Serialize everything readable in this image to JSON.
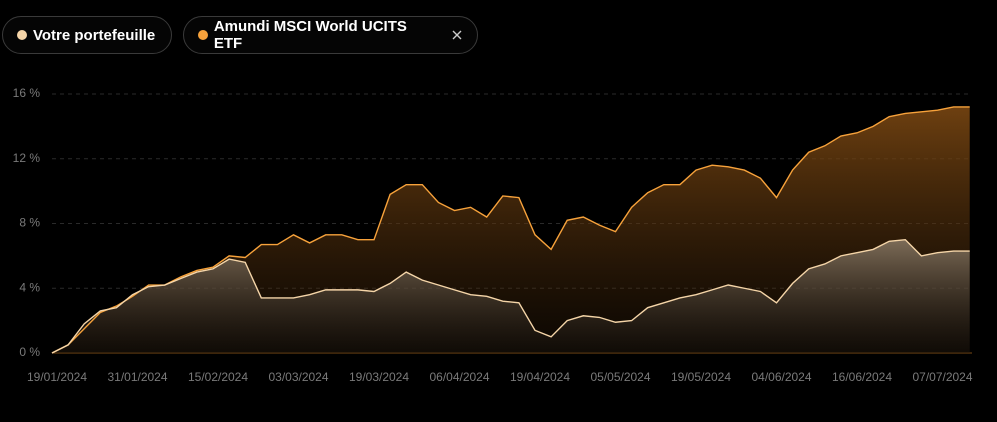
{
  "chart_data": {
    "type": "line",
    "categories": [
      "19/01/2024",
      null,
      null,
      null,
      null,
      "31/01/2024",
      null,
      null,
      null,
      null,
      "15/02/2024",
      null,
      null,
      null,
      null,
      "03/03/2024",
      null,
      null,
      null,
      null,
      "19/03/2024",
      null,
      null,
      null,
      null,
      "06/04/2024",
      null,
      null,
      null,
      null,
      "19/04/2024",
      null,
      null,
      null,
      null,
      "05/05/2024",
      null,
      null,
      null,
      null,
      "19/05/2024",
      null,
      null,
      null,
      null,
      "04/06/2024",
      null,
      null,
      null,
      null,
      "16/06/2024",
      null,
      null,
      null,
      null,
      "07/07/2024",
      null,
      null
    ],
    "series": [
      {
        "name": "Votre portefeuille",
        "color": "#f5d5a8",
        "values": [
          0,
          0.5,
          1.8,
          2.6,
          2.8,
          3.6,
          4.1,
          4.2,
          4.6,
          5.0,
          5.2,
          5.8,
          5.6,
          3.4,
          3.4,
          3.4,
          3.6,
          3.9,
          3.9,
          3.9,
          3.8,
          4.3,
          5.0,
          4.5,
          4.2,
          3.9,
          3.6,
          3.5,
          3.2,
          3.1,
          1.4,
          1.0,
          2.0,
          2.3,
          2.2,
          1.9,
          2.0,
          2.8,
          3.1,
          3.4,
          3.6,
          3.9,
          4.2,
          4.0,
          3.8,
          3.1,
          4.3,
          5.2,
          5.5,
          6.0,
          6.2,
          6.4,
          6.9,
          7.0,
          6.0,
          6.2,
          6.3,
          6.3
        ]
      },
      {
        "name": "Amundi MSCI World UCITS ETF",
        "color": "#f7a23b",
        "values": [
          0,
          0.5,
          1.5,
          2.5,
          2.9,
          3.5,
          4.2,
          4.2,
          4.7,
          5.1,
          5.3,
          6.0,
          5.9,
          6.7,
          6.7,
          7.3,
          6.8,
          7.3,
          7.3,
          7.0,
          7.0,
          9.8,
          10.4,
          10.4,
          9.3,
          8.8,
          9.0,
          8.4,
          9.7,
          9.6,
          7.3,
          6.4,
          8.2,
          8.4,
          7.9,
          7.5,
          9.0,
          9.9,
          10.4,
          10.4,
          11.3,
          11.6,
          11.5,
          11.3,
          10.8,
          9.6,
          11.3,
          12.4,
          12.8,
          13.4,
          13.6,
          14.0,
          14.6,
          14.8,
          14.9,
          15.0,
          15.2,
          15.2
        ]
      }
    ],
    "ylim": [
      0,
      16
    ],
    "yticks": [
      {
        "value": 0,
        "label": "0 %"
      },
      {
        "value": 4,
        "label": "4 %"
      },
      {
        "value": 8,
        "label": "8 %"
      },
      {
        "value": 12,
        "label": "12 %"
      },
      {
        "value": 16,
        "label": "16 %"
      }
    ],
    "grid": true
  }
}
